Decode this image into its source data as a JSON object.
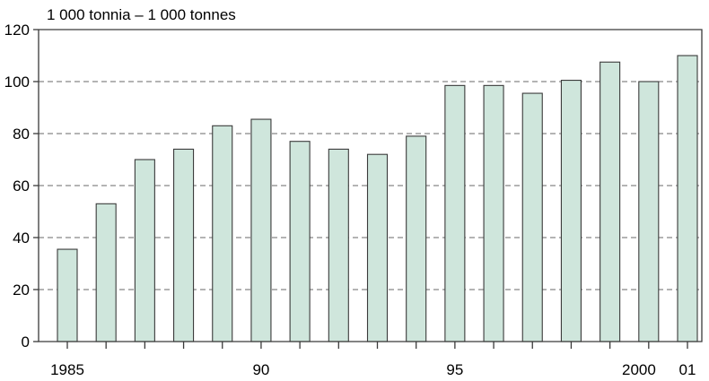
{
  "chart_data": {
    "type": "bar",
    "unit_label": "1 000 tonnia – 1 000 tonnes",
    "categories": [
      "1985",
      "1986",
      "1987",
      "1988",
      "1989",
      "1990",
      "1991",
      "1992",
      "1993",
      "1994",
      "1995",
      "1996",
      "1997",
      "1998",
      "1999",
      "2000",
      "2001"
    ],
    "values": [
      35.5,
      53,
      70,
      74,
      83,
      85.5,
      77,
      74,
      72,
      79,
      98.5,
      98.5,
      95.5,
      100.5,
      107.5,
      100,
      110
    ],
    "ylim": [
      0,
      120
    ],
    "y_ticks": [
      "0",
      "20",
      "40",
      "60",
      "80",
      "100",
      "120"
    ],
    "x_tick_labels": [
      {
        "category": "1985",
        "label": "1985"
      },
      {
        "category": "1990",
        "label": "90"
      },
      {
        "category": "1995",
        "label": "95"
      },
      {
        "category": "2000",
        "label": "2000"
      },
      {
        "category": "2001",
        "label": "01"
      }
    ],
    "grid": "horizontal dashed",
    "colors": {
      "bar_fill": "#cfe6dc",
      "bar_stroke": "#3a3a3a",
      "axis": "#3a3a3a",
      "grid": "#6a6a6a"
    }
  }
}
